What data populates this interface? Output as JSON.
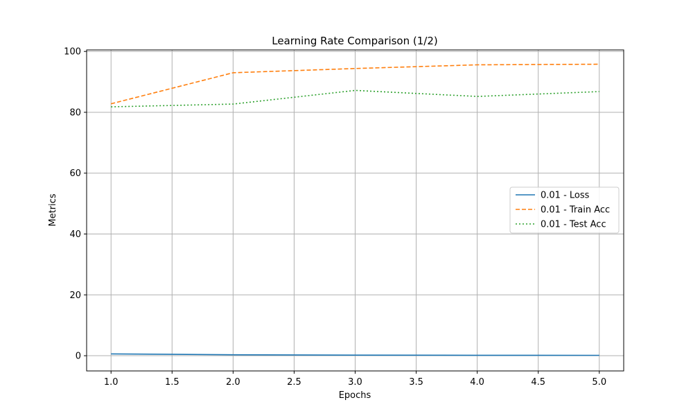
{
  "chart_data": {
    "type": "line",
    "title": "Learning Rate Comparison (1/2)",
    "xlabel": "Epochs",
    "ylabel": "Metrics",
    "xlim": [
      0.8,
      5.2
    ],
    "ylim": [
      -5,
      100.5
    ],
    "xticks": [
      1.0,
      1.5,
      2.0,
      2.5,
      3.0,
      3.5,
      4.0,
      4.5,
      5.0
    ],
    "xtick_labels": [
      "1.0",
      "1.5",
      "2.0",
      "2.5",
      "3.0",
      "3.5",
      "4.0",
      "4.5",
      "5.0"
    ],
    "yticks": [
      0,
      20,
      40,
      60,
      80,
      100
    ],
    "ytick_labels": [
      "0",
      "20",
      "40",
      "60",
      "80",
      "100"
    ],
    "grid": true,
    "legend_position": "center-right",
    "x": [
      1,
      2,
      3,
      4,
      5
    ],
    "series": [
      {
        "name": "0.01 - Loss",
        "values": [
          0.6,
          0.3,
          0.2,
          0.15,
          0.12
        ],
        "color": "#1f77b4",
        "style": "solid"
      },
      {
        "name": "0.01 - Train Acc",
        "values": [
          82.8,
          93.0,
          94.4,
          95.6,
          95.8
        ],
        "color": "#ff7f0e",
        "style": "dashed"
      },
      {
        "name": "0.01 - Test Acc",
        "values": [
          81.8,
          82.7,
          87.2,
          85.2,
          86.8
        ],
        "color": "#2ca02c",
        "style": "dotted"
      }
    ]
  }
}
